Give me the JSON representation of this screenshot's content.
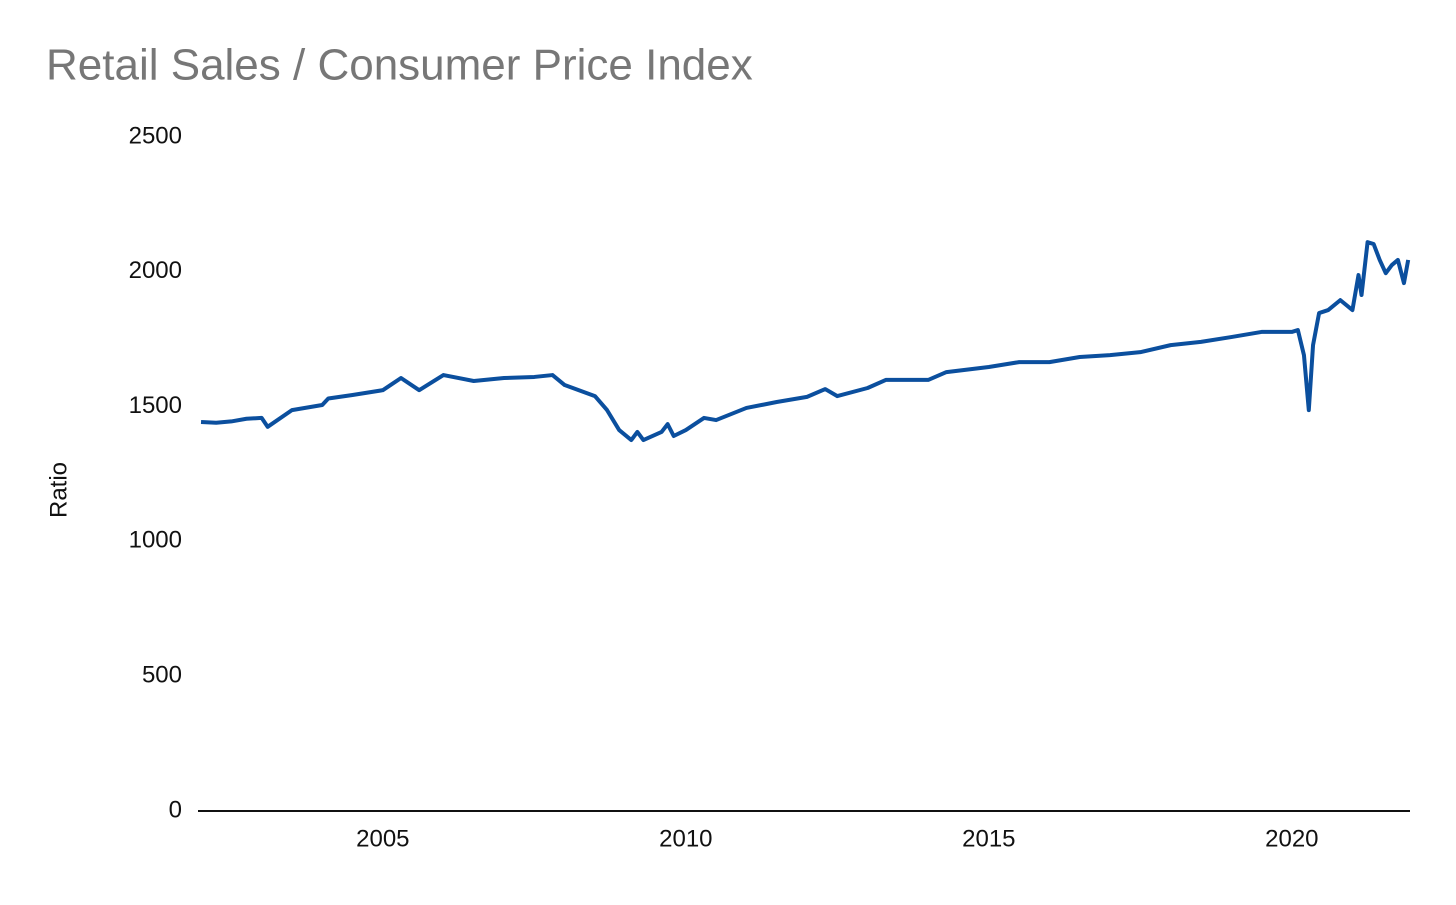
{
  "chart_data": {
    "type": "line",
    "title": "Retail Sales / Consumer Price Index",
    "y_label": "Ratio",
    "x": [
      2002.0,
      2002.25,
      2002.5,
      2002.75,
      2003.0,
      2003.1,
      2003.5,
      2004.0,
      2004.1,
      2004.5,
      2005.0,
      2005.3,
      2005.6,
      2006.0,
      2006.5,
      2007.0,
      2007.5,
      2007.8,
      2008.0,
      2008.5,
      2008.7,
      2008.9,
      2009.1,
      2009.2,
      2009.3,
      2009.6,
      2009.7,
      2009.8,
      2010.0,
      2010.3,
      2010.5,
      2011.0,
      2011.5,
      2012.0,
      2012.3,
      2012.5,
      2013.0,
      2013.3,
      2014.0,
      2014.3,
      2015.0,
      2015.5,
      2016.0,
      2016.5,
      2017.0,
      2017.5,
      2018.0,
      2018.5,
      2019.0,
      2019.5,
      2020.0,
      2020.1,
      2020.2,
      2020.28,
      2020.35,
      2020.45,
      2020.6,
      2020.8,
      2021.0,
      2021.1,
      2021.15,
      2021.25,
      2021.35,
      2021.45,
      2021.55,
      2021.65,
      2021.75,
      2021.85,
      2021.92
    ],
    "series": [
      {
        "name": "Ratio",
        "color": "#0b4f9e",
        "values": [
          1443,
          1440,
          1445,
          1455,
          1458,
          1425,
          1487,
          1506,
          1530,
          1543,
          1561,
          1606,
          1561,
          1617,
          1595,
          1606,
          1610,
          1617,
          1580,
          1539,
          1487,
          1413,
          1376,
          1406,
          1376,
          1406,
          1435,
          1391,
          1413,
          1458,
          1450,
          1495,
          1517,
          1536,
          1565,
          1539,
          1569,
          1599,
          1599,
          1628,
          1647,
          1665,
          1665,
          1684,
          1691,
          1702,
          1728,
          1740,
          1758,
          1777,
          1777,
          1784,
          1691,
          1487,
          1728,
          1847,
          1858,
          1895,
          1858,
          1988,
          1914,
          2110,
          2103,
          2044,
          1995,
          2025,
          2044,
          1958,
          2044
        ]
      }
    ],
    "xlim": [
      2001.95,
      2021.95
    ],
    "xticks": [
      2005,
      2010,
      2015,
      2020
    ],
    "ylim": [
      0,
      2500
    ],
    "yticks": [
      0,
      500,
      1000,
      1500,
      2000,
      2500
    ],
    "grid": false
  }
}
